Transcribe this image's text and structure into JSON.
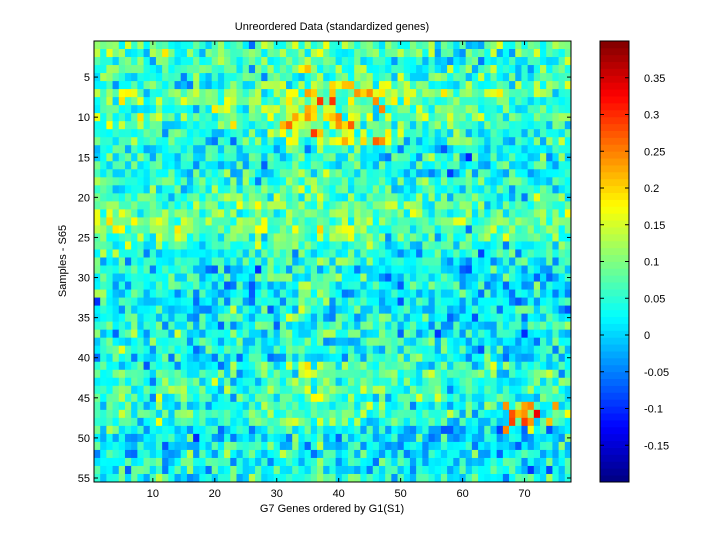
{
  "chart_data": {
    "type": "heatmap",
    "title": "Unreordered Data (standardized genes)",
    "xlabel": "G7 Genes ordered by G1(S1)",
    "ylabel": "Samples - S65",
    "n_cols": 77,
    "n_rows": 55,
    "x_ticks": [
      10,
      20,
      30,
      40,
      50,
      60,
      70
    ],
    "y_ticks": [
      5,
      10,
      15,
      20,
      25,
      30,
      35,
      40,
      45,
      50,
      55
    ],
    "colorbar": {
      "colormap": "jet",
      "range": [
        -0.2,
        0.4
      ],
      "ticks": [
        -0.15,
        -0.1,
        -0.05,
        0,
        0.05,
        0.1,
        0.15,
        0.2,
        0.25,
        0.3,
        0.35
      ],
      "tick_labels": [
        "-0.15",
        "-0.1",
        "-0.05",
        "0",
        "0.05",
        "0.1",
        "0.15",
        "0.2",
        "0.25",
        "0.3",
        "0.35"
      ]
    },
    "row_means": [
      0.06,
      0.08,
      0.06,
      0.07,
      0.05,
      0.06,
      0.11,
      0.1,
      0.08,
      0.09,
      0.07,
      0.06,
      0.05,
      0.02,
      0.03,
      0.02,
      0.03,
      0.04,
      0.05,
      0.07,
      0.08,
      0.1,
      0.12,
      0.1,
      0.08,
      0.05,
      0.02,
      0.01,
      0.0,
      0.0,
      0.01,
      0.0,
      -0.01,
      0.0,
      0.01,
      0.01,
      0.02,
      0.02,
      0.01,
      0.02,
      0.04,
      0.06,
      0.05,
      0.06,
      0.05,
      0.04,
      0.08,
      0.05,
      0.0,
      -0.02,
      -0.01,
      0.0,
      0.02,
      0.01,
      0.03
    ],
    "col_means": [
      0.06,
      0.05,
      0.07,
      0.05,
      0.06,
      0.04,
      0.03,
      0.05,
      0.03,
      0.04,
      0.06,
      0.04,
      0.03,
      0.02,
      0.04,
      0.03,
      0.02,
      0.01,
      0.02,
      0.03,
      0.04,
      0.05,
      0.04,
      0.03,
      0.03,
      0.04,
      0.03,
      0.04,
      0.05,
      0.06,
      0.07,
      0.08,
      0.07,
      0.06,
      0.07,
      0.08,
      0.09,
      0.07,
      0.06,
      0.05,
      0.06,
      0.05,
      0.04,
      0.05,
      0.04,
      0.03,
      0.05,
      0.04,
      0.03,
      0.03,
      0.02,
      0.03,
      0.02,
      0.04,
      0.03,
      0.02,
      0.03,
      0.02,
      0.03,
      0.02,
      0.01,
      0.02,
      0.01,
      0.02,
      0.03,
      0.02,
      0.01,
      0.02,
      0.01,
      0.0,
      0.01,
      0.02,
      0.03,
      0.02,
      0.03,
      0.02,
      0.04
    ]
  }
}
